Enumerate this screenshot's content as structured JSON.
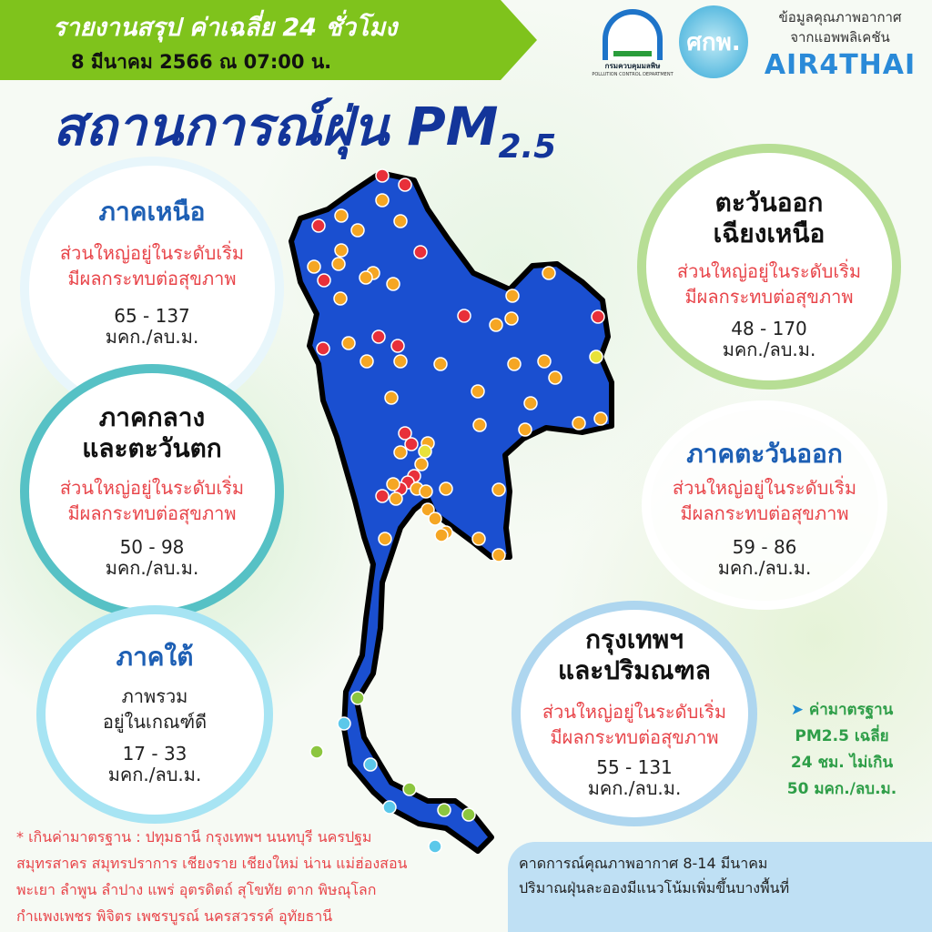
{
  "header": {
    "report_title": "รายงานสรุป ค่าเฉลี่ย 24 ชั่วโมง",
    "date": "8 มีนาคม 2566 ณ 07:00 น."
  },
  "logos": {
    "pcd_name": "กรมควบคุมมลพิษ",
    "pcd_en": "POLLUTION CONTROL DEPARTMENT",
    "skp": "ศกพ.",
    "air_caption1": "ข้อมูลคุณภาพอากาศ",
    "air_caption2": "จากแอพพลิเคชัน",
    "air_brand": "AIR4THAI"
  },
  "title": {
    "main": "สถานการณ์ฝุ่น PM",
    "sub": "2.5"
  },
  "regions": {
    "north": {
      "name": "ภาคเหนือ",
      "status1": "ส่วนใหญ่อยู่ในระดับเริ่ม",
      "status2": "มีผลกระทบต่อสุขภาพ",
      "range": "65 - 137",
      "unit": "มคก./ลบ.ม."
    },
    "northeast": {
      "name1": "ตะวันออก",
      "name2": "เฉียงเหนือ",
      "status1": "ส่วนใหญ่อยู่ในระดับเริ่ม",
      "status2": "มีผลกระทบต่อสุขภาพ",
      "range": "48 - 170",
      "unit": "มคก./ลบ.ม."
    },
    "central": {
      "name1": "ภาคกลาง",
      "name2": "และตะวันตก",
      "status1": "ส่วนใหญ่อยู่ในระดับเริ่ม",
      "status2": "มีผลกระทบต่อสุขภาพ",
      "range": "50 - 98",
      "unit": "มคก./ลบ.ม."
    },
    "east": {
      "name": "ภาคตะวันออก",
      "status1": "ส่วนใหญ่อยู่ในระดับเริ่ม",
      "status2": "มีผลกระทบต่อสุขภาพ",
      "range": "59 - 86",
      "unit": "มคก./ลบ.ม."
    },
    "south": {
      "name": "ภาคใต้",
      "status1": "ภาพรวม",
      "status2": "อยู่ในเกณฑ์ดี",
      "range": "17 - 33",
      "unit": "มคก./ลบ.ม."
    },
    "bangkok": {
      "name1": "กรุงเทพฯ",
      "name2": "และปริมณฑล",
      "status1": "ส่วนใหญ่อยู่ในระดับเริ่ม",
      "status2": "มีผลกระทบต่อสุขภาพ",
      "range": "55 - 131",
      "unit": "มคก./ลบ.ม."
    }
  },
  "standard": {
    "line1": "ค่ามาตรฐาน",
    "line2": "PM2.5 เฉลี่ย",
    "line3": "24 ชม. ไม่เกิน",
    "line4": "50 มคก./ลบ.ม."
  },
  "exceed_note": {
    "line1": "* เกินค่ามาตรฐาน :  ปทุมธานี กรุงเทพฯ นนทบุรี นครปฐม",
    "line2": "สมุทรสาคร สมุทรปราการ เชียงราย เชียงใหม่ น่าน แม่ฮ่องสอน",
    "line3": "พะเยา ลำพูน ลำปาง แพร่ อุตรดิตถ์ สุโขทัย ตาก พิษณุโลก",
    "line4": "กำแพงเพชร พิจิตร เพชรบูรณ์ นครสวรรค์ อุทัยธานี"
  },
  "forecast": {
    "line1": "คาดการณ์คุณภาพอากาศ    8-14    มีนาคม",
    "line2": "ปริมาณฝุ่นละอองมีแนวโน้มเพิ่มขึ้นบางพื้นที่"
  },
  "map": {
    "land_color": "#1a4fd0",
    "level_colors": {
      "very_good": "#5bc8ea",
      "good": "#8cc63f",
      "moderate": "#e8e23a",
      "unhealthy_start": "#f5a623",
      "unhealthy": "#e8303a"
    }
  }
}
